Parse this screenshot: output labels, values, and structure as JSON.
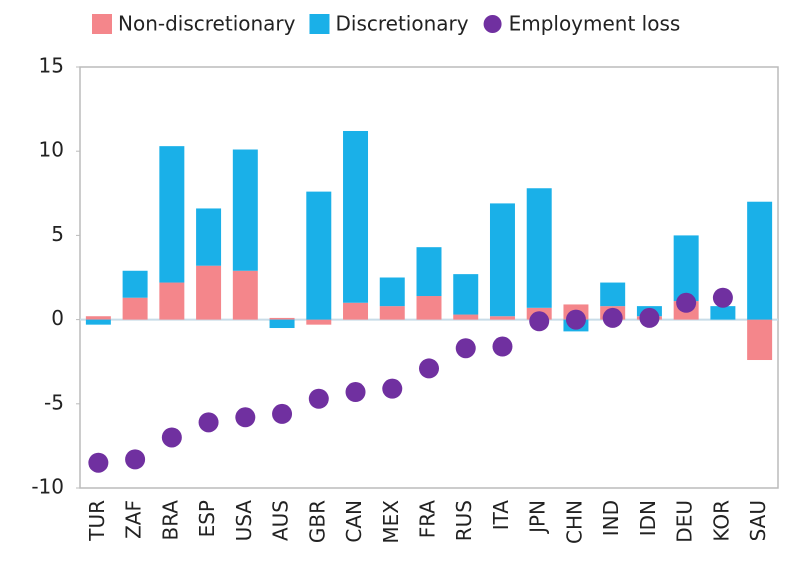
{
  "chart_data": {
    "type": "bar",
    "stacked": true,
    "categories": [
      "TUR",
      "ZAF",
      "BRA",
      "ESP",
      "USA",
      "AUS",
      "GBR",
      "CAN",
      "MEX",
      "FRA",
      "RUS",
      "ITA",
      "JPN",
      "CHN",
      "IND",
      "IDN",
      "DEU",
      "KOR",
      "SAU"
    ],
    "series": [
      {
        "name": "Non-discretionary",
        "type": "bar",
        "color": "#f4868b",
        "values": [
          0.2,
          1.3,
          2.2,
          3.2,
          2.9,
          0.1,
          -0.3,
          1.0,
          0.8,
          1.4,
          0.3,
          0.2,
          0.7,
          0.9,
          0.8,
          0.2,
          1.1,
          0,
          -2.4
        ]
      },
      {
        "name": "Discretionary",
        "type": "bar",
        "color": "#1ab0e8",
        "values": [
          -0.3,
          1.6,
          8.1,
          3.4,
          7.2,
          -0.5,
          7.6,
          10.2,
          1.7,
          2.9,
          2.4,
          6.7,
          7.1,
          -0.7,
          1.4,
          0.6,
          3.9,
          0.8,
          7.0
        ]
      },
      {
        "name": "Employment loss",
        "type": "scatter",
        "color": "#7030a0",
        "values": [
          -8.5,
          -8.3,
          -7.0,
          -6.1,
          -5.8,
          -5.6,
          -4.7,
          -4.3,
          -4.1,
          -2.9,
          -1.7,
          -1.6,
          -0.1,
          0.0,
          0.1,
          0.1,
          1.0,
          1.3,
          null
        ]
      }
    ],
    "ylim": [
      -10,
      15
    ],
    "yticks": [
      -10,
      -5,
      0,
      5,
      10,
      15
    ],
    "grid": false,
    "legend": "top"
  }
}
